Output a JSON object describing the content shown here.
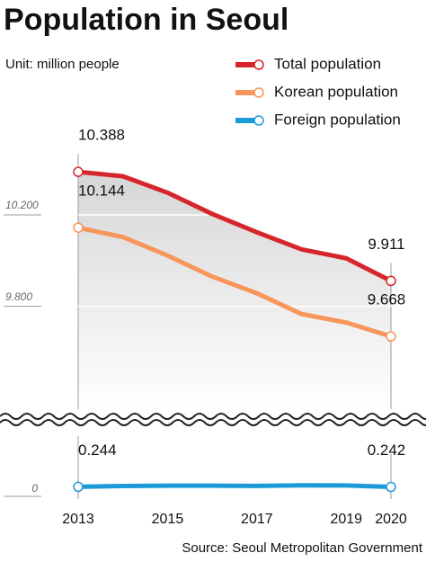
{
  "chart_data": {
    "type": "line",
    "title": "Population in Seoul",
    "subtitle": "Unit: million people",
    "source": "Source: Seoul Metropolitan Government",
    "x": [
      2013,
      2014,
      2015,
      2016,
      2017,
      2018,
      2019,
      2020
    ],
    "xlim": [
      2013,
      2020
    ],
    "xticks": [
      2013,
      2015,
      2017,
      2019,
      2020
    ],
    "ylim": [
      9.35,
      10.55
    ],
    "yticks": [
      {
        "value": 10.2,
        "label": "10.200"
      },
      {
        "value": 9.8,
        "label": "9.800"
      }
    ],
    "y2lim": [
      -0.3,
      1.2
    ],
    "y2ticks": [
      0
    ],
    "series": [
      {
        "name": "Total population",
        "color": "#d7262b",
        "values": [
          10.388,
          10.369,
          10.297,
          10.204,
          10.124,
          10.049,
          10.01,
          9.911
        ]
      },
      {
        "name": "Korean population",
        "color": "#f7955a",
        "values": [
          10.144,
          10.103,
          10.022,
          9.93,
          9.857,
          9.766,
          9.729,
          9.668
        ]
      },
      {
        "name": "Foreign population",
        "color": "#1d9bd9",
        "axis": "y2",
        "values": [
          0.244,
          0.266,
          0.275,
          0.274,
          0.268,
          0.283,
          0.281,
          0.242
        ]
      }
    ]
  }
}
